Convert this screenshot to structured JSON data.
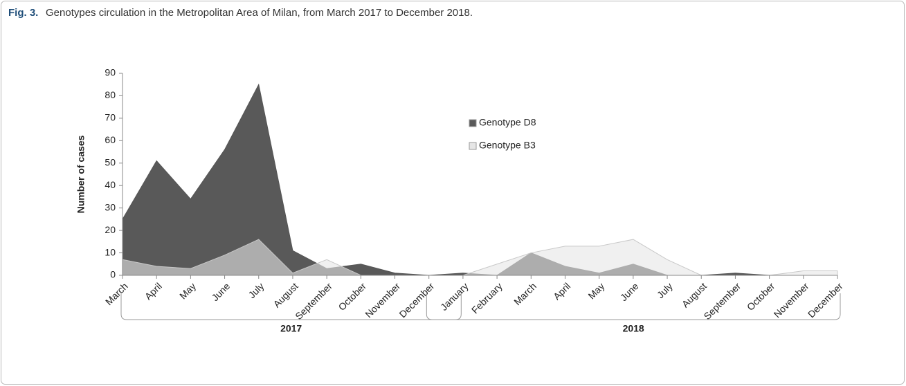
{
  "chart_data": {
    "type": "area",
    "figure_label": "Fig. 3.",
    "title": "Genotypes circulation in the Metropolitan Area of Milan, from March 2017 to December 2018.",
    "y_label": "Number of cases",
    "categories": [
      "March",
      "April",
      "May",
      "June",
      "July",
      "August",
      "September",
      "October",
      "November",
      "December",
      "January",
      "February",
      "March",
      "April",
      "May",
      "June",
      "July",
      "August",
      "September",
      "October",
      "November",
      "December"
    ],
    "x_groups": [
      {
        "label": "2017",
        "count": 10
      },
      {
        "label": "2018",
        "count": 12
      }
    ],
    "series": [
      {
        "name": "Genotype D8",
        "color": "#595959",
        "values": [
          25,
          51,
          34,
          56,
          85,
          11,
          3,
          5,
          1,
          0,
          1,
          0,
          10,
          4,
          1,
          5,
          0,
          0,
          1,
          0,
          0,
          0
        ]
      },
      {
        "name": "Genotype B3",
        "color": "#e6e6e6",
        "values": [
          7,
          4,
          3,
          9,
          16,
          1,
          7,
          0,
          0,
          0,
          0,
          5,
          10,
          13,
          13,
          16,
          7,
          0,
          0,
          0,
          2,
          2
        ]
      }
    ],
    "ylim": [
      0,
      90
    ],
    "yticks": [
      0,
      10,
      20,
      30,
      40,
      50,
      60,
      70,
      80,
      90
    ],
    "grid": false,
    "legend": "inside"
  }
}
